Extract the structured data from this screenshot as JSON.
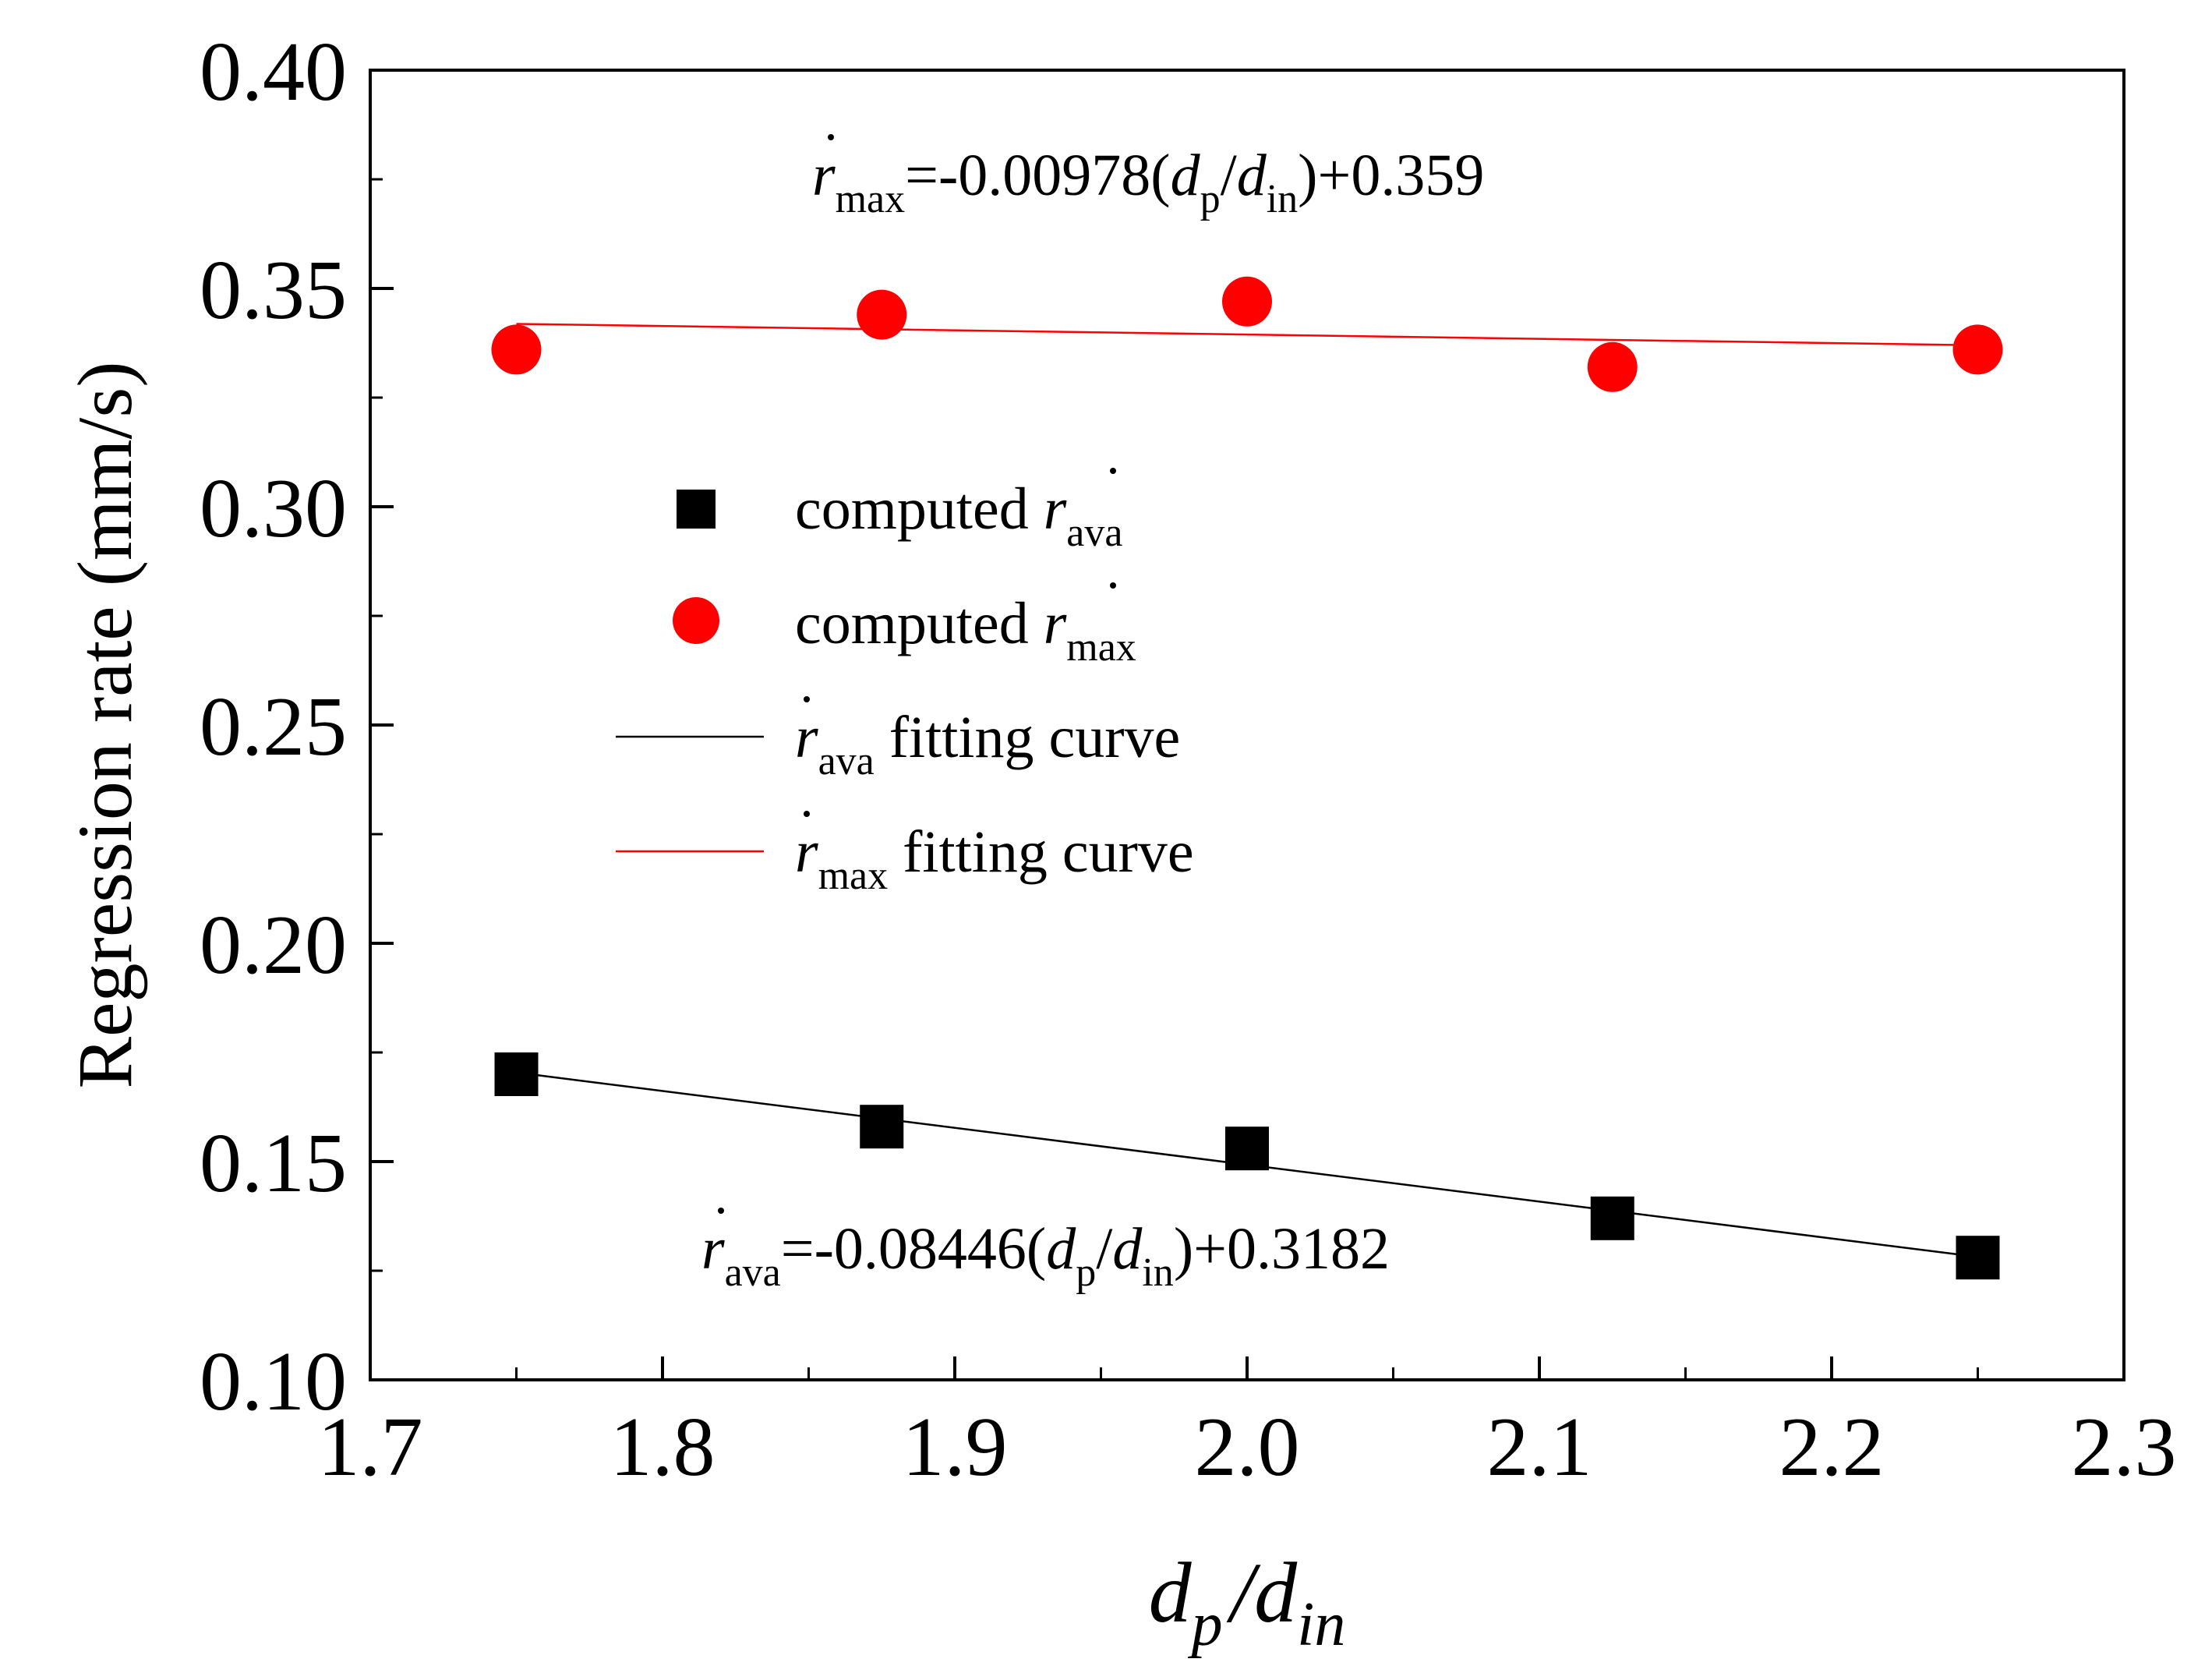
{
  "chart_data": {
    "type": "scatter",
    "title": "",
    "xlabel": {
      "main": "d",
      "sub1": "p",
      "slash": "/",
      "main2": "d",
      "sub2": "in"
    },
    "ylabel": "Regression rate (mm/s)",
    "xlim": [
      1.7,
      2.3
    ],
    "ylim": [
      0.1,
      0.4
    ],
    "x_ticks": [
      1.7,
      1.8,
      1.9,
      2.0,
      2.1,
      2.2,
      2.3
    ],
    "x_tick_labels": [
      "1.7",
      "1.8",
      "1.9",
      "2.0",
      "2.1",
      "2.2",
      "2.3"
    ],
    "y_ticks": [
      0.1,
      0.15,
      0.2,
      0.25,
      0.3,
      0.35,
      0.4
    ],
    "y_tick_labels": [
      "0.10",
      "0.15",
      "0.20",
      "0.25",
      "0.30",
      "0.35",
      "0.40"
    ],
    "series": [
      {
        "name": "computed r_ava",
        "marker": "square",
        "color": "#000000",
        "x": [
          1.75,
          1.875,
          2.0,
          2.125,
          2.25
        ],
        "y": [
          0.17,
          0.158,
          0.153,
          0.137,
          0.128
        ]
      },
      {
        "name": "computed r_max",
        "marker": "circle",
        "color": "#ff0000",
        "x": [
          1.75,
          1.875,
          2.0,
          2.125,
          2.25
        ],
        "y": [
          0.336,
          0.344,
          0.347,
          0.332,
          0.336
        ]
      }
    ],
    "fits": [
      {
        "name": "r_ava fitting curve",
        "color": "#000000",
        "slope": -0.08446,
        "intercept": 0.3182,
        "x_range": [
          1.75,
          2.25
        ]
      },
      {
        "name": "r_max fitting curve",
        "color": "#ff0000",
        "slope": -0.00978,
        "intercept": 0.359,
        "x_range": [
          1.75,
          2.25
        ]
      }
    ],
    "legend": {
      "placement": "center-left",
      "entries": [
        {
          "prefix": "computed ",
          "symbol": "r",
          "sub": "ava",
          "suffix": ""
        },
        {
          "prefix": "computed ",
          "symbol": "r",
          "sub": "max",
          "suffix": ""
        },
        {
          "prefix": "",
          "symbol": "r",
          "sub": "ava",
          "suffix": " fitting curve"
        },
        {
          "prefix": "",
          "symbol": "r",
          "sub": "max",
          "suffix": " fitting curve"
        }
      ]
    },
    "annotations": [
      {
        "symbol": "r",
        "sub": "max",
        "eq": "=-0.00978(",
        "d1": "d",
        "d1sub": "p",
        "slash": "/",
        "d2": "d",
        "d2sub": "in",
        "tail": ")+0.359"
      },
      {
        "symbol": "r",
        "sub": "ava",
        "eq": "=-0.08446(",
        "d1": "d",
        "d1sub": "p",
        "slash": "/",
        "d2": "d",
        "d2sub": "in",
        "tail": ")+0.3182"
      }
    ]
  }
}
